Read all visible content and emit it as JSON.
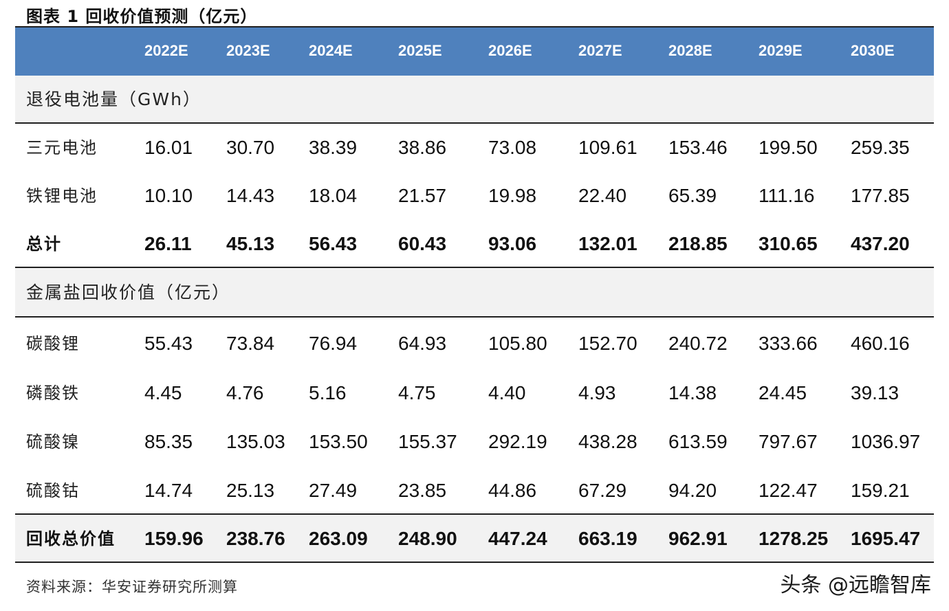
{
  "title": "图表 1  回收价值预测（亿元）",
  "header": [
    "2022E",
    "2023E",
    "2024E",
    "2025E",
    "2026E",
    "2027E",
    "2028E",
    "2029E",
    "2030E"
  ],
  "section1": {
    "label": "退役电池量（GWh）",
    "rows": [
      {
        "label": "三元电池",
        "values": [
          "16.01",
          "30.70",
          "38.39",
          "38.86",
          "73.08",
          "109.61",
          "153.46",
          "199.50",
          "259.35"
        ]
      },
      {
        "label": "铁锂电池",
        "values": [
          "10.10",
          "14.43",
          "18.04",
          "21.57",
          "19.98",
          "22.40",
          "65.39",
          "111.16",
          "177.85"
        ]
      }
    ],
    "total": {
      "label": "总计",
      "values": [
        "26.11",
        "45.13",
        "56.43",
        "60.43",
        "93.06",
        "132.01",
        "218.85",
        "310.65",
        "437.20"
      ]
    }
  },
  "section2": {
    "label": "金属盐回收价值（亿元）",
    "rows": [
      {
        "label": "碳酸锂",
        "values": [
          "55.43",
          "73.84",
          "76.94",
          "64.93",
          "105.80",
          "152.70",
          "240.72",
          "333.66",
          "460.16"
        ]
      },
      {
        "label": "磷酸铁",
        "values": [
          "4.45",
          "4.76",
          "5.16",
          "4.75",
          "4.40",
          "4.93",
          "14.38",
          "24.45",
          "39.13"
        ]
      },
      {
        "label": "硫酸镍",
        "values": [
          "85.35",
          "135.03",
          "153.50",
          "155.37",
          "292.19",
          "438.28",
          "613.59",
          "797.67",
          "1036.97"
        ]
      },
      {
        "label": "硫酸钴",
        "values": [
          "14.74",
          "25.13",
          "27.49",
          "23.85",
          "44.86",
          "67.29",
          "94.20",
          "122.47",
          "159.21"
        ]
      }
    ],
    "total": {
      "label": "回收总价值",
      "values": [
        "159.96",
        "238.76",
        "263.09",
        "248.90",
        "447.24",
        "663.19",
        "962.91",
        "1278.25",
        "1695.47"
      ]
    }
  },
  "source": "资料来源：华安证券研究所测算",
  "watermark": "头条 @远瞻智库"
}
